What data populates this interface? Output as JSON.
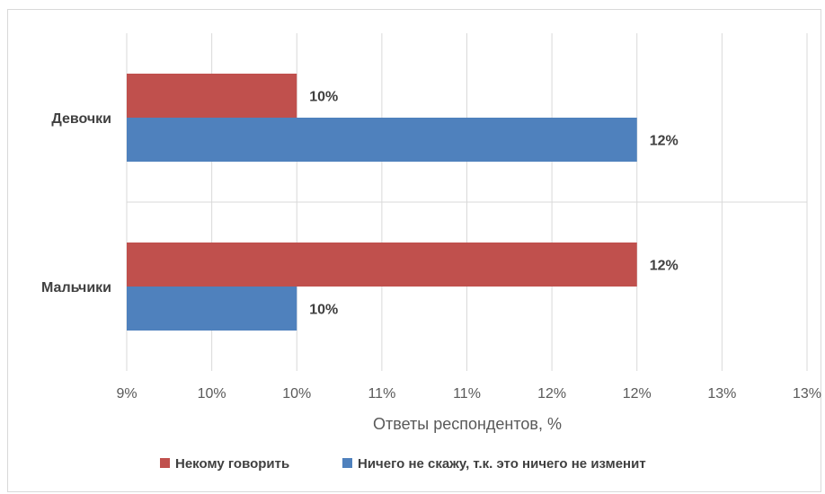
{
  "chart_data": {
    "type": "bar",
    "orientation": "horizontal",
    "categories": [
      "Мальчики",
      "Девочки"
    ],
    "series": [
      {
        "name": "Некому говорить",
        "color": "#C0504D",
        "values": [
          12,
          10
        ],
        "labels": [
          "12%",
          "10%"
        ]
      },
      {
        "name": "Ничего не скажу, т.к. это ничего не изменит",
        "color": "#4F81BD",
        "values": [
          10,
          12
        ],
        "labels": [
          "10%",
          "12%"
        ]
      }
    ],
    "xlabel": "Ответы респондентов, %",
    "xlim": [
      9,
      13
    ],
    "x_ticks": [
      9,
      9.5,
      10,
      10.5,
      11,
      11.5,
      12,
      12.5,
      13
    ],
    "x_tick_labels": [
      "9%",
      "10%",
      "10%",
      "11%",
      "11%",
      "12%",
      "12%",
      "13%",
      "13%"
    ],
    "grid": true,
    "legend_position": "bottom"
  }
}
